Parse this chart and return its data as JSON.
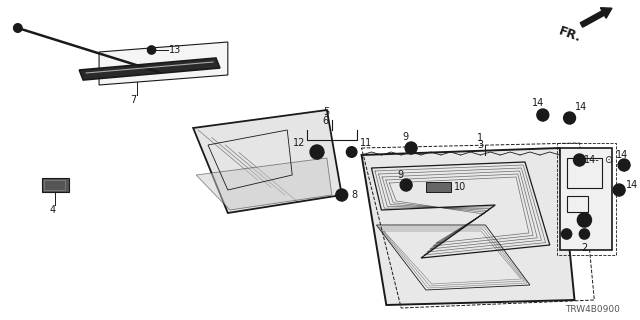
{
  "bg_color": "#ffffff",
  "line_color": "#1a1a1a",
  "diagram_code": "TRW4B0900"
}
